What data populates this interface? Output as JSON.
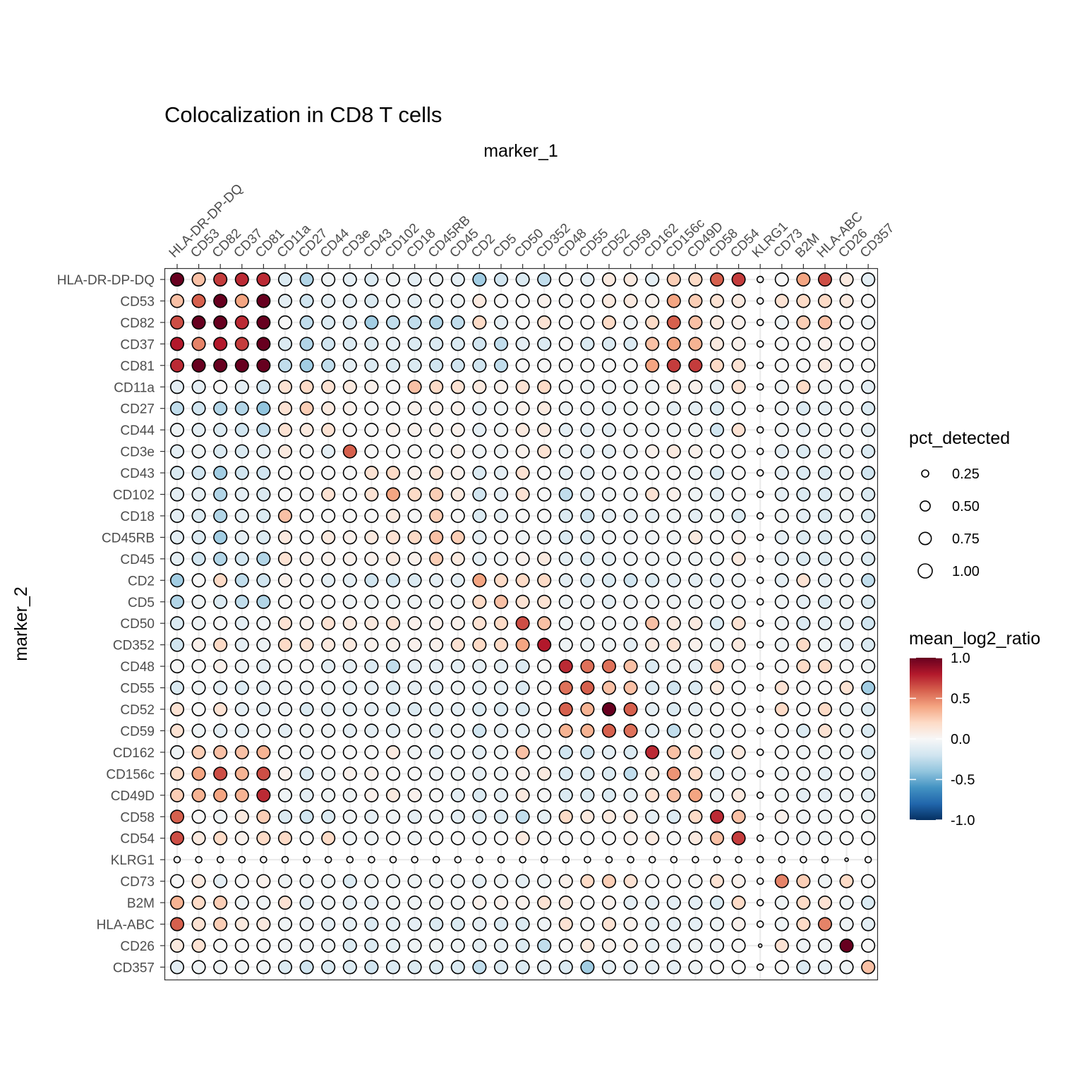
{
  "chart_data": {
    "type": "heatmap",
    "title": "Colocalization in CD8 T cells",
    "xlabel": "marker_1",
    "ylabel": "marker_2",
    "markers": [
      "HLA-DR-DP-DQ",
      "CD53",
      "CD82",
      "CD37",
      "CD81",
      "CD11a",
      "CD27",
      "CD44",
      "CD3e",
      "CD43",
      "CD102",
      "CD18",
      "CD45RB",
      "CD45",
      "CD2",
      "CD5",
      "CD50",
      "CD352",
      "CD48",
      "CD55",
      "CD52",
      "CD59",
      "CD162",
      "CD156c",
      "CD49D",
      "CD58",
      "CD54",
      "KLRG1",
      "CD73",
      "B2M",
      "HLA-ABC",
      "CD26",
      "CD357"
    ],
    "size_legend": {
      "title": "pct_detected",
      "breaks": [
        0.25,
        0.5,
        0.75,
        1.0
      ],
      "labels": [
        "0.25",
        "0.50",
        "0.75",
        "1.00"
      ]
    },
    "color_legend": {
      "title": "mean_log2_ratio",
      "limits": [
        -1.0,
        1.0
      ],
      "breaks": [
        1.0,
        0.5,
        0.0,
        -0.5,
        -1.0
      ],
      "labels": [
        "1.0",
        "0.5",
        "0.0",
        "-0.5",
        "-1.0"
      ],
      "colors": [
        "#67001f",
        "#b2182b",
        "#d6604d",
        "#f4a582",
        "#fddbc7",
        "#f7f7f7",
        "#d1e5f0",
        "#92c5de",
        "#4393c3",
        "#2166ac",
        "#053061"
      ]
    },
    "grid": true,
    "legend_position": "right",
    "pct_detected_note": "",
    "size": {
      "default": 0.85,
      "klrg1": 0.2,
      "klrg1_crossings": 0.06
    },
    "mean_log2_ratio": [
      [
        1.0,
        0.3,
        0.7,
        0.75,
        0.75,
        -0.15,
        -0.3,
        -0.05,
        -0.1,
        -0.15,
        -0.05,
        -0.1,
        -0.05,
        -0.1,
        -0.35,
        -0.2,
        -0.15,
        -0.25,
        0.0,
        -0.1,
        0.1,
        0.1,
        -0.1,
        0.25,
        0.2,
        0.6,
        0.7,
        0.0,
        0.0,
        0.4,
        0.65,
        0.1,
        -0.1
      ],
      [
        0.3,
        0.6,
        1.0,
        0.4,
        1.0,
        -0.1,
        -0.2,
        -0.1,
        -0.1,
        -0.15,
        -0.05,
        -0.1,
        -0.05,
        -0.05,
        0.1,
        0.0,
        0.0,
        0.05,
        0.0,
        0.0,
        0.1,
        0.1,
        0.05,
        0.4,
        0.25,
        0.15,
        0.1,
        0.0,
        0.15,
        0.2,
        0.2,
        0.1,
        0.0
      ],
      [
        0.65,
        1.0,
        1.0,
        0.75,
        1.0,
        0.0,
        -0.25,
        -0.15,
        -0.15,
        -0.35,
        -0.25,
        -0.25,
        -0.3,
        -0.25,
        0.2,
        -0.1,
        0.0,
        0.15,
        0.0,
        0.0,
        0.2,
        -0.05,
        0.2,
        0.6,
        0.3,
        0.1,
        0.05,
        0.0,
        -0.05,
        0.25,
        0.3,
        0.0,
        -0.05
      ],
      [
        0.8,
        0.5,
        0.8,
        0.7,
        1.0,
        -0.15,
        -0.3,
        -0.2,
        -0.15,
        -0.15,
        -0.1,
        -0.15,
        -0.15,
        -0.15,
        -0.2,
        -0.25,
        -0.1,
        -0.15,
        0.0,
        -0.15,
        -0.15,
        -0.15,
        0.3,
        0.4,
        0.35,
        0.1,
        0.05,
        0.0,
        0.0,
        0.0,
        0.05,
        0.0,
        0.0
      ],
      [
        0.75,
        1.0,
        1.0,
        1.0,
        1.0,
        -0.25,
        -0.35,
        -0.25,
        -0.1,
        -0.15,
        -0.15,
        -0.15,
        -0.2,
        -0.2,
        -0.2,
        -0.25,
        0.0,
        0.0,
        0.0,
        0.0,
        0.0,
        0.0,
        0.4,
        0.7,
        0.7,
        0.2,
        0.15,
        0.0,
        0.0,
        0.0,
        0.1,
        0.0,
        0.0
      ],
      [
        -0.1,
        -0.1,
        0.0,
        -0.1,
        -0.2,
        0.15,
        0.2,
        0.15,
        0.1,
        0.05,
        0.0,
        0.3,
        0.2,
        0.15,
        0.1,
        0.05,
        0.15,
        0.2,
        0.0,
        -0.05,
        -0.05,
        -0.05,
        -0.05,
        0.1,
        0.05,
        -0.1,
        0.15,
        0.0,
        -0.05,
        0.2,
        -0.05,
        -0.05,
        -0.1
      ],
      [
        -0.25,
        -0.2,
        -0.3,
        -0.3,
        -0.4,
        0.15,
        0.25,
        0.1,
        0.05,
        0.0,
        0.0,
        0.05,
        0.05,
        0.05,
        -0.1,
        -0.05,
        0.05,
        0.1,
        -0.05,
        -0.05,
        -0.1,
        -0.05,
        -0.05,
        -0.1,
        -0.1,
        -0.15,
        0.0,
        0.0,
        -0.05,
        -0.15,
        -0.1,
        -0.05,
        -0.15
      ],
      [
        -0.05,
        -0.1,
        -0.15,
        -0.2,
        -0.25,
        0.15,
        0.1,
        0.15,
        0.0,
        0.0,
        0.05,
        0.05,
        0.05,
        0.05,
        -0.1,
        -0.05,
        0.1,
        0.1,
        -0.1,
        -0.1,
        -0.1,
        -0.05,
        -0.05,
        -0.05,
        -0.05,
        -0.2,
        0.15,
        0.0,
        -0.05,
        -0.1,
        -0.05,
        -0.05,
        -0.1
      ],
      [
        -0.1,
        -0.05,
        -0.15,
        -0.15,
        -0.1,
        0.1,
        0.0,
        -0.1,
        0.6,
        0.0,
        0.0,
        0.0,
        0.0,
        0.05,
        -0.05,
        -0.05,
        0.05,
        0.15,
        -0.05,
        -0.1,
        -0.1,
        -0.05,
        0.05,
        0.1,
        0.05,
        0.0,
        0.0,
        0.0,
        -0.1,
        -0.15,
        -0.1,
        -0.05,
        -0.15
      ],
      [
        -0.15,
        -0.2,
        -0.35,
        -0.2,
        -0.2,
        0.0,
        0.0,
        0.0,
        0.0,
        0.15,
        0.2,
        0.05,
        0.15,
        0.05,
        -0.15,
        -0.1,
        0.15,
        0.0,
        -0.1,
        -0.1,
        -0.05,
        -0.05,
        0.0,
        0.0,
        -0.05,
        -0.15,
        0.0,
        0.0,
        -0.1,
        -0.15,
        -0.15,
        -0.05,
        -0.2
      ],
      [
        -0.1,
        -0.1,
        -0.3,
        -0.1,
        -0.15,
        0.0,
        0.0,
        0.15,
        0.0,
        0.15,
        0.4,
        0.2,
        0.25,
        0.1,
        -0.2,
        -0.1,
        0.15,
        0.0,
        -0.25,
        -0.1,
        -0.05,
        -0.05,
        0.15,
        0.05,
        -0.05,
        -0.1,
        0.0,
        0.0,
        -0.1,
        -0.15,
        -0.15,
        -0.05,
        -0.15
      ],
      [
        -0.1,
        -0.15,
        -0.3,
        -0.1,
        -0.15,
        0.3,
        0.0,
        0.0,
        0.0,
        0.0,
        0.1,
        0.0,
        0.25,
        0.0,
        -0.15,
        -0.1,
        0.0,
        0.0,
        -0.15,
        -0.2,
        -0.1,
        -0.1,
        -0.1,
        -0.05,
        -0.1,
        -0.05,
        -0.15,
        0.0,
        -0.05,
        -0.1,
        -0.15,
        -0.05,
        -0.15
      ],
      [
        -0.1,
        -0.15,
        -0.35,
        -0.1,
        -0.15,
        0.1,
        0.0,
        0.1,
        0.05,
        0.1,
        0.15,
        0.2,
        0.3,
        0.25,
        -0.1,
        0.0,
        -0.05,
        -0.05,
        -0.15,
        -0.15,
        -0.05,
        -0.05,
        -0.05,
        -0.05,
        0.1,
        0.0,
        0.05,
        0.0,
        -0.1,
        -0.15,
        -0.15,
        -0.05,
        -0.15
      ],
      [
        -0.1,
        -0.2,
        -0.3,
        -0.2,
        -0.3,
        0.15,
        0.05,
        0.05,
        0.05,
        0.05,
        0.1,
        0.05,
        0.25,
        0.1,
        -0.1,
        -0.05,
        0.05,
        0.1,
        -0.1,
        -0.15,
        -0.1,
        -0.05,
        -0.05,
        -0.05,
        -0.05,
        -0.05,
        0.1,
        0.0,
        -0.1,
        -0.15,
        -0.15,
        -0.05,
        -0.15
      ],
      [
        -0.35,
        0.0,
        0.2,
        -0.25,
        -0.2,
        0.05,
        0.0,
        -0.1,
        -0.1,
        -0.2,
        -0.2,
        -0.15,
        -0.1,
        -0.1,
        0.4,
        0.2,
        0.2,
        0.2,
        -0.1,
        -0.15,
        -0.15,
        -0.2,
        -0.15,
        -0.1,
        -0.1,
        -0.1,
        -0.05,
        0.0,
        -0.1,
        0.15,
        -0.1,
        -0.05,
        -0.25
      ],
      [
        -0.3,
        -0.05,
        -0.15,
        -0.25,
        -0.3,
        0.0,
        0.0,
        0.0,
        -0.05,
        -0.05,
        -0.05,
        -0.05,
        -0.05,
        -0.05,
        0.2,
        0.3,
        0.15,
        0.15,
        -0.05,
        -0.05,
        -0.1,
        -0.05,
        -0.05,
        -0.05,
        -0.05,
        -0.05,
        -0.05,
        0.0,
        -0.05,
        -0.1,
        -0.15,
        -0.05,
        -0.15
      ],
      [
        -0.15,
        -0.05,
        0.0,
        -0.1,
        -0.05,
        0.15,
        0.05,
        0.15,
        0.1,
        0.1,
        0.15,
        0.05,
        0.05,
        0.05,
        0.15,
        0.2,
        0.65,
        0.3,
        -0.05,
        -0.05,
        -0.05,
        -0.05,
        0.3,
        0.1,
        0.1,
        -0.15,
        0.15,
        0.0,
        -0.05,
        -0.15,
        -0.1,
        -0.1,
        -0.2
      ],
      [
        -0.2,
        0.05,
        0.2,
        -0.1,
        -0.05,
        0.2,
        0.15,
        0.1,
        0.1,
        0.05,
        0.05,
        0.05,
        0.05,
        0.15,
        0.2,
        0.2,
        0.4,
        0.8,
        -0.05,
        -0.05,
        -0.05,
        -0.1,
        0.1,
        0.15,
        0.05,
        -0.05,
        0.1,
        0.0,
        -0.05,
        0.2,
        -0.05,
        -0.1,
        -0.15
      ],
      [
        0.0,
        0.0,
        0.05,
        -0.05,
        -0.1,
        0.0,
        0.0,
        -0.1,
        -0.1,
        -0.15,
        -0.25,
        -0.1,
        -0.1,
        -0.1,
        -0.1,
        -0.1,
        -0.15,
        0.0,
        0.75,
        0.55,
        0.55,
        0.3,
        -0.15,
        -0.05,
        -0.1,
        0.25,
        0.0,
        0.0,
        0.0,
        0.2,
        0.2,
        0.0,
        -0.05
      ],
      [
        -0.15,
        -0.05,
        -0.1,
        -0.15,
        -0.1,
        -0.05,
        -0.05,
        -0.05,
        -0.1,
        -0.1,
        -0.15,
        -0.1,
        -0.1,
        -0.05,
        -0.1,
        -0.1,
        -0.15,
        0.0,
        0.55,
        0.6,
        0.3,
        0.3,
        -0.15,
        -0.2,
        -0.15,
        0.1,
        0.0,
        0.0,
        0.15,
        0.0,
        0.0,
        0.15,
        -0.35
      ],
      [
        0.15,
        0.0,
        0.15,
        -0.1,
        -0.1,
        -0.05,
        -0.15,
        -0.1,
        -0.1,
        -0.1,
        -0.15,
        -0.15,
        -0.1,
        -0.1,
        -0.15,
        -0.15,
        -0.15,
        0.0,
        0.6,
        0.35,
        1.0,
        0.6,
        -0.1,
        -0.15,
        -0.1,
        0.0,
        0.0,
        0.0,
        0.2,
        0.0,
        0.2,
        -0.05,
        -0.15
      ],
      [
        0.15,
        -0.05,
        -0.1,
        -0.1,
        -0.05,
        -0.1,
        -0.05,
        -0.05,
        -0.1,
        -0.1,
        -0.1,
        -0.05,
        -0.1,
        -0.05,
        -0.2,
        -0.1,
        -0.1,
        -0.05,
        0.35,
        0.35,
        0.6,
        0.55,
        -0.1,
        -0.25,
        -0.05,
        -0.05,
        0.0,
        0.0,
        0.0,
        -0.15,
        0.15,
        -0.05,
        -0.15
      ],
      [
        -0.05,
        0.25,
        0.3,
        0.3,
        0.35,
        0.0,
        -0.05,
        0.0,
        0.0,
        0.0,
        0.1,
        -0.05,
        -0.1,
        -0.05,
        -0.1,
        -0.05,
        0.3,
        0.0,
        -0.2,
        -0.2,
        -0.1,
        -0.15,
        0.75,
        0.3,
        0.2,
        -0.15,
        0.1,
        0.0,
        0.0,
        -0.05,
        -0.05,
        -0.05,
        -0.15
      ],
      [
        0.2,
        0.4,
        0.65,
        0.35,
        0.65,
        0.05,
        -0.15,
        -0.05,
        0.05,
        0.05,
        0.0,
        0.0,
        -0.05,
        -0.05,
        -0.1,
        -0.05,
        0.05,
        0.1,
        -0.15,
        -0.15,
        -0.15,
        -0.25,
        0.1,
        0.45,
        0.2,
        -0.1,
        -0.05,
        0.0,
        -0.05,
        -0.05,
        -0.1,
        0.0,
        -0.1
      ],
      [
        0.25,
        0.35,
        0.4,
        0.35,
        0.75,
        -0.05,
        -0.1,
        -0.05,
        -0.05,
        0.05,
        0.1,
        0.05,
        0.0,
        -0.1,
        -0.15,
        -0.1,
        0.1,
        0.0,
        -0.15,
        -0.15,
        -0.15,
        -0.1,
        0.15,
        0.3,
        0.4,
        -0.05,
        0.1,
        0.0,
        -0.05,
        -0.1,
        -0.1,
        -0.05,
        -0.1
      ],
      [
        0.6,
        0.0,
        -0.05,
        0.1,
        0.25,
        -0.15,
        -0.2,
        -0.15,
        -0.05,
        -0.1,
        -0.05,
        -0.1,
        -0.05,
        -0.1,
        -0.15,
        -0.15,
        -0.25,
        -0.1,
        0.2,
        0.1,
        0.1,
        0.1,
        -0.1,
        -0.15,
        0.2,
        0.75,
        0.3,
        0.0,
        0.05,
        -0.05,
        -0.05,
        0.0,
        -0.05
      ],
      [
        0.65,
        0.1,
        0.2,
        0.05,
        0.2,
        0.2,
        0.0,
        0.2,
        -0.05,
        -0.05,
        0.0,
        -0.05,
        0.0,
        0.0,
        -0.05,
        0.0,
        0.1,
        0.0,
        0.0,
        0.0,
        0.0,
        0.05,
        0.1,
        0.0,
        0.1,
        0.3,
        0.7,
        0.0,
        0.0,
        -0.05,
        -0.05,
        0.0,
        0.0
      ],
      [
        0.0,
        0.0,
        0.0,
        0.0,
        0.0,
        0.0,
        0.0,
        0.0,
        0.0,
        0.0,
        0.0,
        0.0,
        0.0,
        0.0,
        0.0,
        0.0,
        0.0,
        0.0,
        0.0,
        0.0,
        0.0,
        0.0,
        0.0,
        0.0,
        0.0,
        0.0,
        0.0,
        0.0,
        0.0,
        0.0,
        0.0,
        0.0,
        0.0
      ],
      [
        0.0,
        0.1,
        -0.1,
        0.0,
        0.05,
        -0.05,
        -0.05,
        -0.05,
        -0.15,
        -0.05,
        -0.05,
        -0.05,
        -0.05,
        -0.05,
        -0.1,
        -0.05,
        -0.1,
        -0.05,
        0.05,
        0.2,
        0.25,
        0.15,
        0.0,
        0.0,
        0.0,
        0.15,
        0.05,
        0.0,
        0.5,
        0.25,
        -0.05,
        0.2,
        0.0
      ],
      [
        0.35,
        0.2,
        0.25,
        -0.05,
        -0.05,
        0.15,
        -0.1,
        -0.05,
        -0.1,
        -0.1,
        -0.05,
        -0.05,
        -0.05,
        -0.05,
        0.05,
        0.05,
        0.05,
        0.15,
        0.1,
        0.0,
        0.05,
        -0.1,
        -0.1,
        -0.1,
        -0.1,
        -0.15,
        0.2,
        0.0,
        -0.05,
        0.2,
        0.15,
        -0.05,
        -0.15
      ],
      [
        0.6,
        0.15,
        0.25,
        0.1,
        0.1,
        -0.05,
        -0.05,
        -0.1,
        -0.1,
        -0.15,
        -0.1,
        -0.1,
        -0.15,
        -0.15,
        -0.1,
        -0.15,
        -0.15,
        -0.05,
        0.15,
        0.0,
        0.15,
        0.05,
        -0.1,
        -0.1,
        -0.1,
        -0.05,
        0.05,
        0.0,
        -0.05,
        0.2,
        0.5,
        -0.05,
        -0.1
      ],
      [
        0.1,
        0.15,
        0.0,
        0.0,
        0.0,
        -0.05,
        -0.05,
        -0.05,
        -0.15,
        -0.15,
        -0.1,
        -0.05,
        -0.05,
        -0.05,
        -0.1,
        -0.1,
        -0.15,
        -0.25,
        0.0,
        0.1,
        0.05,
        0.05,
        -0.1,
        -0.1,
        -0.05,
        -0.05,
        0.0,
        0.0,
        0.15,
        -0.05,
        -0.05,
        1.0,
        0.0
      ],
      [
        -0.1,
        -0.05,
        -0.05,
        -0.05,
        -0.05,
        -0.15,
        -0.2,
        -0.15,
        -0.15,
        -0.2,
        -0.15,
        -0.15,
        -0.15,
        -0.15,
        -0.25,
        -0.15,
        -0.15,
        -0.1,
        -0.15,
        -0.35,
        -0.1,
        -0.1,
        -0.1,
        -0.1,
        -0.05,
        0.0,
        0.0,
        0.0,
        0.0,
        -0.15,
        -0.1,
        -0.05,
        0.3
      ]
    ]
  }
}
